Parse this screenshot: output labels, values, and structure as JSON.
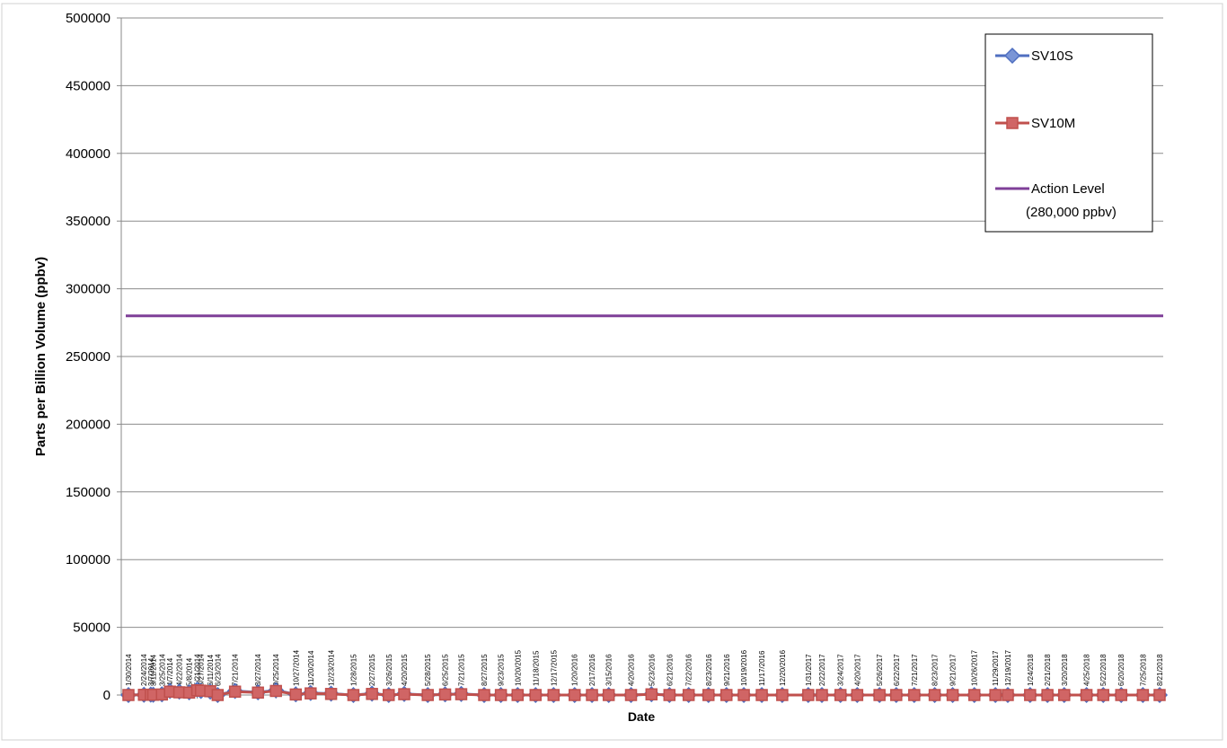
{
  "chart_data": {
    "type": "line",
    "title": "",
    "xlabel": "Date",
    "ylabel": "Parts per Billion Volume (ppbv)",
    "ylim": [
      0,
      500000
    ],
    "yticks": [
      0,
      50000,
      100000,
      150000,
      200000,
      250000,
      300000,
      350000,
      400000,
      450000,
      500000
    ],
    "ytick_labels": [
      "0",
      "50000",
      "100000",
      "150000",
      "200000",
      "250000",
      "300000",
      "350000",
      "400000",
      "450000",
      "500000"
    ],
    "grid": true,
    "legend_position": "top-right",
    "colors": {
      "SV10S": "#4f6fc0",
      "SV10M": "#c0504d",
      "Action Level": "#7f3f98"
    },
    "x": [
      "1/30/2014",
      "2/24/2014",
      "3/7/2014",
      "3/11/2014",
      "3/25/2014",
      "4/7/2014",
      "4/22/2014",
      "5/8/2014",
      "5/21/2014",
      "5/27/2014",
      "6/11/2014",
      "6/23/2014",
      "7/21/2014",
      "8/27/2014",
      "9/25/2014",
      "10/27/2014",
      "11/20/2014",
      "12/23/2014",
      "1/28/2015",
      "2/27/2015",
      "3/26/2015",
      "4/20/2015",
      "5/28/2015",
      "6/25/2015",
      "7/21/2015",
      "8/27/2015",
      "9/23/2015",
      "10/20/2015",
      "11/18/2015",
      "12/17/2015",
      "1/20/2016",
      "2/17/2016",
      "3/15/2016",
      "4/20/2016",
      "5/23/2016",
      "6/21/2016",
      "7/22/2016",
      "8/23/2016",
      "9/21/2016",
      "10/19/2016",
      "11/17/2016",
      "12/20/2016",
      "1/31/2017",
      "2/22/2017",
      "3/24/2017",
      "4/20/2017",
      "5/26/2017",
      "6/22/2017",
      "7/21/2017",
      "8/23/2017",
      "9/21/2017",
      "10/26/2017",
      "11/29/2017",
      "12/19/2017",
      "1/24/2018",
      "2/21/2018",
      "3/20/2018",
      "4/25/2018",
      "5/22/2018",
      "6/20/2018",
      "7/25/2018",
      "8/21/2018"
    ],
    "series": [
      {
        "name": "SV10S",
        "marker": "diamond",
        "values": [
          0,
          200,
          300,
          200,
          500,
          3000,
          2500,
          2000,
          4000,
          3000,
          2500,
          0,
          3000,
          2000,
          3500,
          500,
          1500,
          1000,
          0,
          1000,
          0,
          800,
          0,
          500,
          800,
          0,
          0,
          0,
          0,
          0,
          0,
          0,
          0,
          0,
          600,
          0,
          0,
          0,
          0,
          0,
          0,
          0,
          0,
          0,
          0,
          0,
          0,
          0,
          0,
          0,
          0,
          0,
          0,
          0,
          0,
          0,
          0,
          0,
          0,
          0,
          0,
          0
        ]
      },
      {
        "name": "SV10M",
        "marker": "square",
        "values": [
          0,
          150,
          250,
          150,
          400,
          2500,
          2000,
          1800,
          3500,
          3200,
          2800,
          0,
          2500,
          1800,
          3000,
          400,
          1200,
          800,
          0,
          800,
          0,
          600,
          0,
          400,
          600,
          0,
          0,
          0,
          0,
          0,
          0,
          0,
          0,
          0,
          500,
          0,
          0,
          0,
          0,
          0,
          0,
          0,
          0,
          0,
          0,
          0,
          0,
          0,
          0,
          0,
          0,
          0,
          0,
          0,
          0,
          0,
          0,
          0,
          0,
          0,
          0,
          0
        ]
      },
      {
        "name": "Action Level (280,000 ppbv)",
        "marker": "none",
        "label_lines": [
          "Action Level",
          "(280,000 ppbv)"
        ],
        "constant": 280000
      }
    ]
  }
}
